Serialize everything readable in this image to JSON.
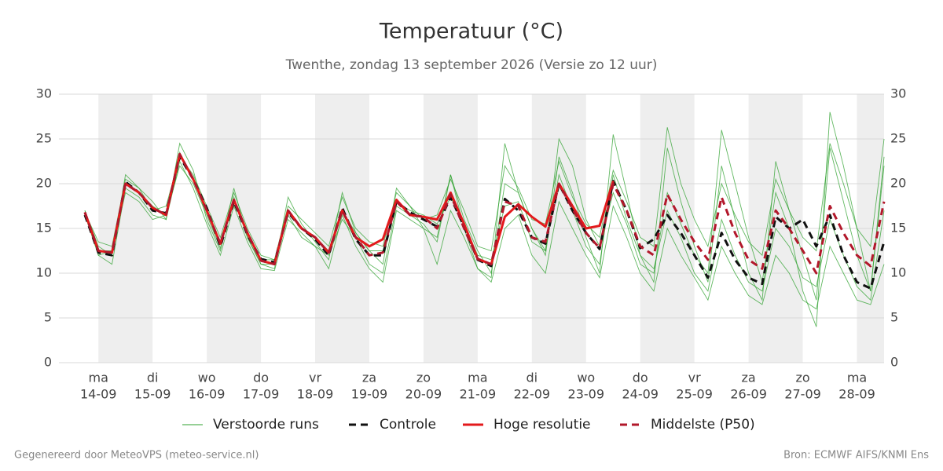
{
  "chart_data": {
    "type": "line",
    "title": "Temperatuur (°C)",
    "subtitle": "Twenthe, zondag 13 september 2026 (Versie zo 12 uur)",
    "footer_left": "Gegenereerd door MeteoVPS (meteo-service.nl)",
    "footer_right": "Bron: ECMWF AIFS/KNMI Ens",
    "categories": [
      null,
      [
        "ma",
        "14-09"
      ],
      null,
      null,
      null,
      [
        "di",
        "15-09"
      ],
      null,
      null,
      null,
      [
        "wo",
        "16-09"
      ],
      null,
      null,
      null,
      [
        "do",
        "17-09"
      ],
      null,
      null,
      null,
      [
        "vr",
        "18-09"
      ],
      null,
      null,
      null,
      [
        "za",
        "19-09"
      ],
      null,
      null,
      null,
      [
        "zo",
        "20-09"
      ],
      null,
      null,
      null,
      [
        "ma",
        "21-09"
      ],
      null,
      null,
      null,
      [
        "di",
        "22-09"
      ],
      null,
      null,
      null,
      [
        "wo",
        "23-09"
      ],
      null,
      null,
      null,
      [
        "do",
        "24-09"
      ],
      null,
      null,
      null,
      [
        "vr",
        "25-09"
      ],
      null,
      null,
      null,
      [
        "za",
        "26-09"
      ],
      null,
      null,
      null,
      [
        "zo",
        "27-09"
      ],
      null,
      null,
      null,
      [
        "ma",
        "28-09"
      ],
      null,
      null
    ],
    "ylim": [
      0,
      30
    ],
    "yticks": [
      0,
      5,
      10,
      15,
      20,
      25,
      30
    ],
    "y2lim": [
      0,
      30
    ],
    "y2ticks": [
      0,
      5,
      10,
      15,
      20,
      25,
      30
    ],
    "grid": true,
    "legend": "bottom",
    "series": [
      {
        "name": "Verstoorde runs",
        "color": "#2ca02c",
        "members": [
          [
            17.0,
            13.0,
            12.0,
            21.0,
            19.5,
            18.0,
            16.0,
            24.5,
            21.5,
            16.0,
            12.5,
            19.5,
            14.0,
            11.0,
            10.5,
            18.5,
            15.5,
            13.5,
            11.5,
            19.0,
            14.5,
            12.5,
            11.0,
            19.5,
            17.5,
            15.0,
            14.0,
            21.0,
            16.0,
            12.5,
            10.0,
            20.0,
            19.0,
            15.0,
            12.0,
            23.0,
            19.0,
            14.0,
            10.0,
            25.5,
            19.0,
            12.0,
            9.0,
            24.0,
            18.0,
            13.0,
            9.0,
            22.0,
            16.0,
            10.0,
            7.0,
            22.5,
            17.0,
            12.0,
            7.0,
            24.0,
            18.0,
            12.0,
            8.0,
            22.0
          ],
          [
            16.5,
            12.0,
            11.0,
            19.5,
            18.5,
            16.5,
            16.0,
            22.5,
            19.5,
            15.5,
            12.0,
            17.5,
            13.5,
            10.5,
            10.3,
            16.0,
            14.5,
            13.0,
            10.5,
            16.5,
            13.0,
            10.5,
            9.0,
            17.0,
            16.0,
            15.0,
            11.0,
            17.0,
            14.0,
            10.5,
            9.0,
            15.0,
            16.5,
            12.0,
            10.0,
            18.0,
            15.0,
            12.0,
            9.5,
            17.5,
            14.0,
            10.0,
            8.0,
            15.0,
            12.0,
            9.5,
            7.0,
            13.0,
            10.0,
            7.5,
            6.5,
            12.0,
            10.0,
            7.0,
            6.0,
            13.0,
            10.0,
            7.0,
            6.5,
            11.0
          ],
          [
            16.8,
            13.5,
            13.0,
            20.5,
            19.5,
            17.0,
            17.5,
            23.0,
            21.0,
            17.5,
            14.0,
            19.0,
            15.0,
            12.0,
            11.5,
            17.5,
            16.0,
            14.5,
            13.0,
            18.5,
            15.0,
            13.5,
            13.0,
            19.0,
            17.5,
            16.0,
            16.5,
            20.5,
            17.0,
            13.0,
            12.5,
            22.0,
            19.5,
            16.0,
            15.5,
            22.5,
            18.5,
            15.5,
            14.0,
            21.5,
            18.0,
            14.0,
            13.0,
            26.3,
            20.0,
            16.0,
            13.0,
            20.0,
            16.5,
            13.5,
            12.0,
            20.5,
            17.0,
            14.0,
            12.5,
            24.5,
            20.0,
            15.0,
            13.0,
            25.0
          ],
          [
            16.5,
            12.5,
            12.5,
            19.0,
            18.0,
            16.0,
            16.5,
            22.0,
            20.0,
            16.5,
            12.8,
            18.5,
            14.0,
            11.0,
            11.0,
            16.5,
            14.0,
            13.0,
            12.0,
            16.0,
            14.0,
            11.0,
            10.0,
            17.5,
            16.5,
            15.5,
            13.5,
            21.0,
            15.0,
            10.5,
            9.5,
            24.5,
            19.0,
            15.0,
            12.5,
            25.0,
            22.0,
            16.0,
            13.0,
            19.0,
            15.5,
            11.0,
            10.0,
            19.0,
            15.5,
            12.0,
            10.0,
            26.0,
            20.0,
            14.0,
            9.0,
            19.0,
            15.0,
            8.0,
            4.0,
            28.0,
            22.0,
            15.0,
            8.0,
            23.0
          ],
          [
            17.0,
            12.0,
            12.5,
            20.0,
            19.0,
            17.5,
            16.5,
            23.5,
            20.5,
            17.0,
            13.5,
            18.0,
            14.5,
            11.5,
            11.5,
            17.0,
            15.0,
            14.0,
            12.5,
            17.0,
            14.5,
            12.5,
            12.5,
            18.0,
            17.0,
            16.5,
            15.5,
            18.5,
            15.5,
            12.0,
            11.5,
            17.5,
            18.0,
            13.5,
            12.5,
            21.0,
            17.0,
            13.0,
            11.0,
            21.0,
            16.0,
            12.0,
            10.5,
            17.0,
            14.0,
            10.0,
            8.0,
            16.0,
            12.0,
            9.0,
            8.0,
            15.0,
            13.0,
            9.5,
            8.5,
            16.0,
            12.0,
            8.5,
            7.0,
            17.0
          ]
        ]
      },
      {
        "name": "Controle",
        "color": "#111111",
        "dashed": true,
        "values": [
          16.5,
          12.3,
          12.0,
          20.2,
          19.0,
          17.0,
          16.7,
          23.0,
          20.5,
          17.3,
          13.0,
          18.0,
          14.3,
          11.6,
          11.2,
          16.8,
          15.0,
          13.8,
          12.0,
          17.3,
          13.8,
          12.0,
          12.0,
          18.0,
          16.8,
          16.0,
          15.2,
          18.5,
          15.2,
          11.5,
          10.8,
          18.3,
          17.0,
          14.0,
          13.3,
          20.0,
          17.0,
          14.5,
          12.7,
          20.3,
          17.0,
          12.8,
          13.8,
          16.5,
          14.5,
          12.0,
          9.5,
          14.5,
          11.5,
          9.5,
          8.8,
          16.3,
          15.0,
          16.0,
          13.0,
          16.5,
          12.0,
          9.0,
          8.3,
          13.5
        ]
      },
      {
        "name": "Hoge resolutie",
        "color": "#e31a1c",
        "values": [
          16.8,
          12.5,
          12.3,
          20.0,
          19.0,
          17.3,
          16.5,
          23.3,
          20.5,
          17.0,
          13.3,
          18.2,
          14.5,
          11.4,
          11.0,
          17.0,
          15.0,
          14.0,
          12.3,
          17.0,
          14.0,
          13.0,
          13.8,
          18.2,
          16.5,
          16.3,
          16.0,
          19.0,
          15.5,
          11.6,
          11.0,
          16.3,
          17.7,
          16.3,
          15.2,
          20.0,
          17.5,
          15.0,
          15.3,
          20.3,
          null,
          null,
          null,
          null,
          null,
          null,
          null,
          null,
          null,
          null,
          null,
          null,
          null,
          null,
          null,
          null,
          null,
          null,
          null,
          null
        ]
      },
      {
        "name": "Middelste (P50)",
        "color": "#b2182b",
        "dashed": true,
        "values": [
          16.8,
          12.5,
          12.3,
          20.0,
          19.0,
          17.3,
          16.5,
          23.3,
          20.5,
          17.0,
          13.3,
          18.2,
          14.5,
          11.4,
          11.0,
          17.0,
          15.0,
          14.0,
          12.3,
          17.0,
          14.0,
          12.0,
          12.3,
          18.0,
          16.5,
          16.3,
          15.0,
          18.8,
          15.0,
          11.6,
          11.0,
          18.0,
          17.5,
          14.0,
          13.5,
          20.0,
          17.2,
          14.5,
          12.8,
          20.0,
          17.0,
          13.0,
          12.0,
          18.8,
          16.0,
          13.5,
          11.5,
          18.5,
          14.5,
          11.5,
          10.5,
          17.0,
          15.0,
          12.5,
          10.0,
          17.5,
          14.5,
          12.0,
          10.8,
          18.0
        ]
      }
    ]
  }
}
